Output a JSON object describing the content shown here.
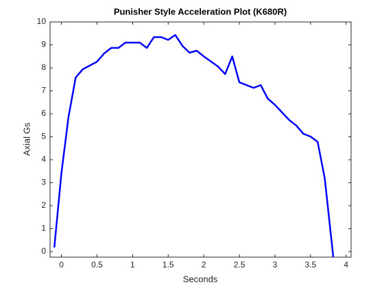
{
  "chart_data": {
    "type": "line",
    "title": "Punisher Style Acceleration Plot (K680R)",
    "x_label": "Seconds",
    "y_label": "Axial Gs",
    "x": [
      -0.1,
      0,
      0.1,
      0.2,
      0.3,
      0.5,
      0.6,
      0.7,
      0.8,
      0.9,
      1.0,
      1.1,
      1.2,
      1.3,
      1.4,
      1.5,
      1.6,
      1.7,
      1.8,
      1.9,
      2.0,
      2.2,
      2.3,
      2.4,
      2.5,
      2.7,
      2.8,
      2.9,
      3.0,
      3.2,
      3.3,
      3.4,
      3.5,
      3.6,
      3.7,
      3.82
    ],
    "series": [
      {
        "color": "#0000ff",
        "values": [
          0.18,
          3.43,
          5.88,
          7.58,
          7.94,
          8.27,
          8.63,
          8.87,
          8.87,
          9.1,
          9.1,
          9.1,
          8.87,
          9.34,
          9.34,
          9.22,
          9.43,
          8.96,
          8.66,
          8.75,
          8.5,
          8.06,
          7.73,
          8.5,
          7.37,
          7.13,
          7.25,
          6.66,
          6.39,
          5.73,
          5.49,
          5.13,
          5.01,
          4.78,
          3.19,
          -0.24
        ]
      }
    ],
    "xlim": [
      -0.16,
      4.07
    ],
    "ylim": [
      -0.24,
      10
    ],
    "xticks": [
      0,
      0.5,
      1,
      1.5,
      2,
      2.5,
      3,
      3.5,
      4
    ],
    "yticks": [
      0,
      1,
      2,
      3,
      4,
      5,
      6,
      7,
      8,
      9,
      10
    ]
  }
}
